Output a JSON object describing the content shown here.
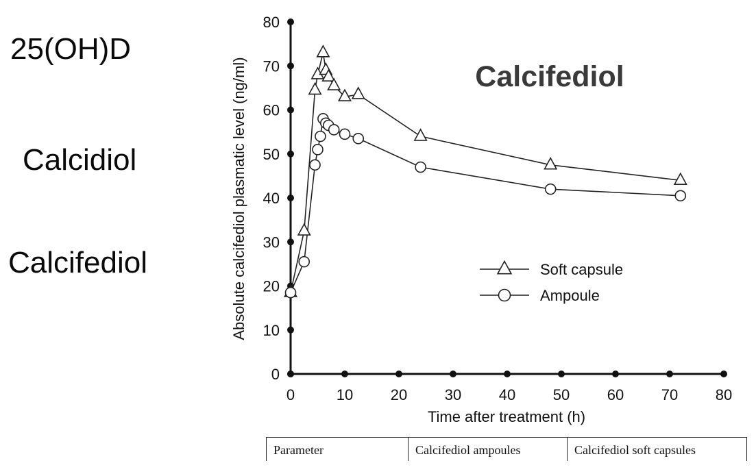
{
  "side_labels": [
    "25(OH)D",
    "Calcidiol",
    "Calcifediol"
  ],
  "chart_data": {
    "type": "line",
    "title": "Calcifediol",
    "xlabel": "Time after treatment (h)",
    "ylabel": "Absolute calcifediol plasmatic level (ng/ml)",
    "xlim": [
      0,
      80
    ],
    "ylim": [
      0,
      80
    ],
    "xticks": [
      0,
      10,
      20,
      30,
      40,
      50,
      60,
      70,
      80
    ],
    "yticks": [
      0,
      10,
      20,
      30,
      40,
      50,
      60,
      70,
      80
    ],
    "grid": false,
    "legend_position": "center-right",
    "series": [
      {
        "name": "Soft capsule",
        "marker": "triangle",
        "x": [
          0,
          2.5,
          4.5,
          5,
          6,
          6.5,
          7,
          8,
          10,
          12.5,
          24,
          48,
          72
        ],
        "y": [
          18.5,
          32.5,
          64.5,
          68,
          73,
          69,
          67.5,
          65.5,
          63,
          63.5,
          54,
          47.5,
          44
        ]
      },
      {
        "name": "Ampoule",
        "marker": "circle",
        "x": [
          0,
          2.5,
          4.5,
          5,
          5.5,
          6,
          6.5,
          7,
          8,
          10,
          12.5,
          24,
          48,
          72
        ],
        "y": [
          18.5,
          25.5,
          47.5,
          51,
          54,
          58,
          57,
          56.5,
          55.5,
          54.5,
          53.5,
          47,
          42,
          40.5
        ]
      }
    ]
  },
  "table": {
    "headers": [
      "Parameter",
      "Calcifediol  ampoules",
      "Calcifediol  soft  capsules"
    ]
  }
}
